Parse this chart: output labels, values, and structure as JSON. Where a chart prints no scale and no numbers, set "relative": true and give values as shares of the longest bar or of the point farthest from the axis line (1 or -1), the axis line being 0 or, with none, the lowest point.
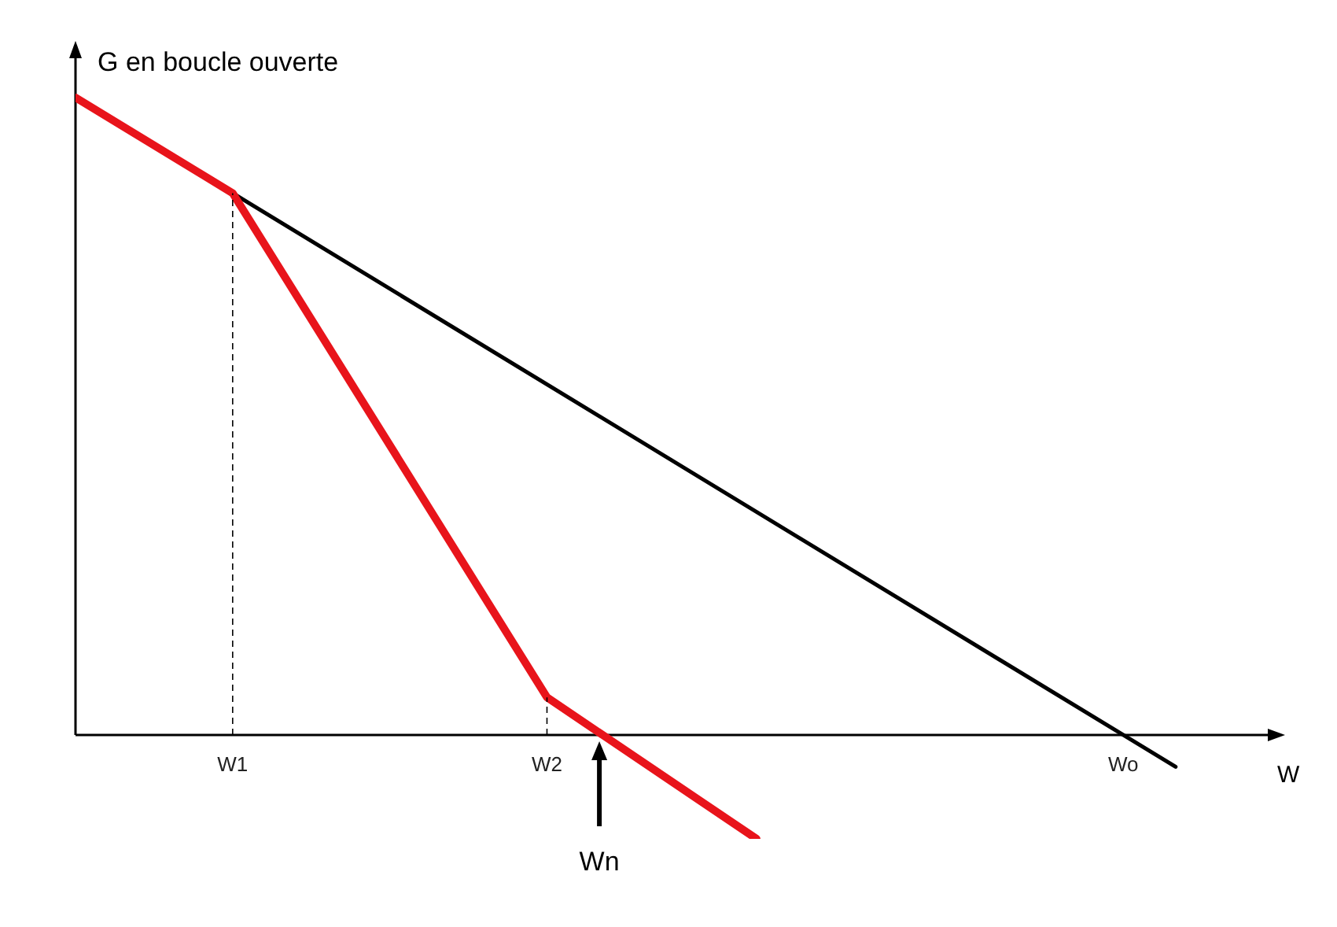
{
  "chart_data": {
    "type": "line",
    "relative": true,
    "ylabel": "G en boucle ouverte",
    "xlabel": "W",
    "categories": [
      null,
      null,
      null,
      "W1",
      null,
      null,
      null,
      null,
      null,
      "W2",
      null,
      null,
      null,
      null,
      null,
      null,
      null,
      null,
      null,
      null,
      "Wo",
      null,
      null,
      null
    ],
    "series": [
      {
        "color": "#000000",
        "values": [
          1,
          null,
          null,
          0.85,
          null,
          null,
          null,
          null,
          null,
          null,
          null,
          null,
          null,
          null,
          null,
          null,
          null,
          null,
          null,
          null,
          0,
          -0.05,
          null,
          null
        ]
      },
      {
        "color": "#e8141b",
        "values": [
          1,
          null,
          null,
          0.85,
          null,
          null,
          null,
          null,
          null,
          0.059,
          null,
          null,
          null,
          -0.163,
          null,
          null,
          null,
          null,
          null,
          null,
          null,
          null,
          null,
          null
        ]
      }
    ],
    "annotations": [
      "Wn"
    ],
    "marker": "none",
    "line_style": "solid"
  }
}
